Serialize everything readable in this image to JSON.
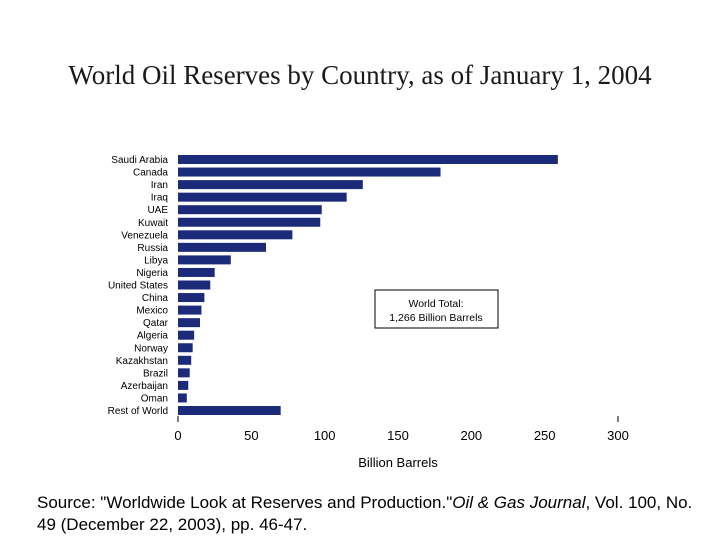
{
  "title": "World Oil Reserves by Country, as of January 1, 2004",
  "annotation": {
    "line1": "World Total:",
    "line2": "1,266 Billion Barrels"
  },
  "source": {
    "prefix": "Source:  \"Worldwide Look at Reserves and Production.\"",
    "journal": "Oil & Gas Journal",
    "suffix": ", Vol. 100, No. 49 (December 22, 2003), pp. 46-47."
  },
  "colors": {
    "bar": "#1c2a7a"
  },
  "chart_data": {
    "type": "bar",
    "orientation": "horizontal",
    "title": "World Oil Reserves by Country, as of January 1, 2004",
    "xlabel": "Billion Barrels",
    "ylabel": "",
    "xlim": [
      0,
      300
    ],
    "xticks": [
      0,
      50,
      100,
      150,
      200,
      250,
      300
    ],
    "categories": [
      "Saudi Arabia",
      "Canada",
      "Iran",
      "Iraq",
      "UAE",
      "Kuwait",
      "Venezuela",
      "Russia",
      "Libya",
      "Nigeria",
      "United States",
      "China",
      "Mexico",
      "Qatar",
      "Algeria",
      "Norway",
      "Kazakhstan",
      "Brazil",
      "Azerbaijan",
      "Oman",
      "Rest of World"
    ],
    "values": [
      259,
      179,
      126,
      115,
      98,
      97,
      78,
      60,
      36,
      25,
      22,
      18,
      16,
      15,
      11,
      10,
      9,
      8,
      7,
      6,
      70
    ]
  }
}
